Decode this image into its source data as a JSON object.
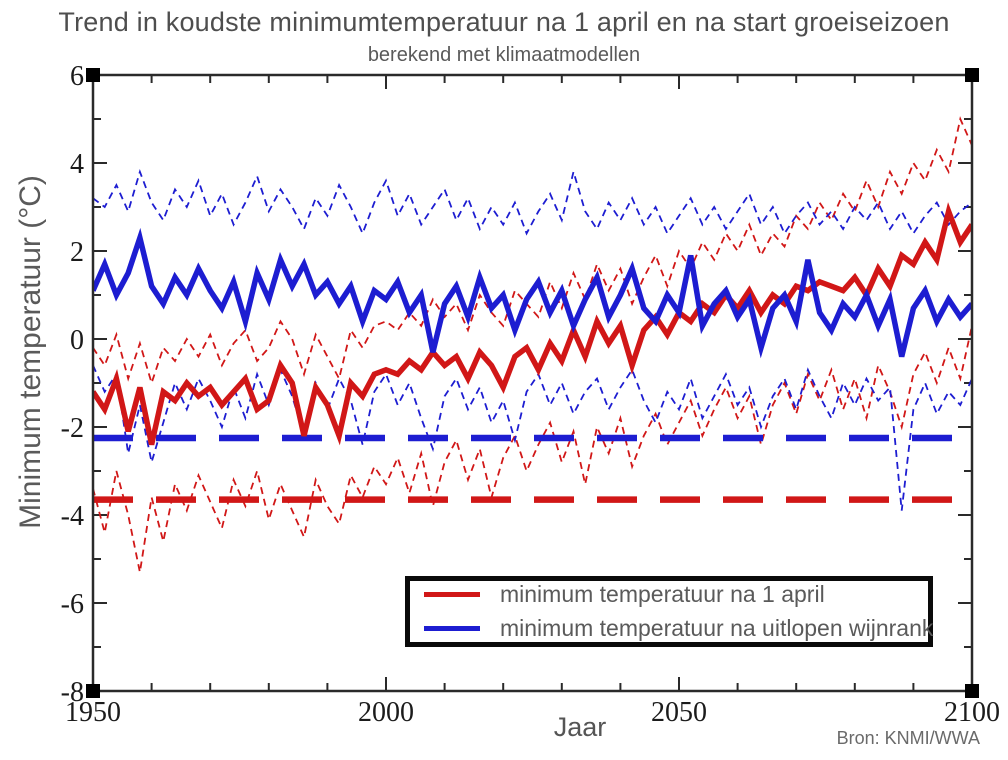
{
  "header": {
    "title": "Trend in koudste minimumtemperatuur na 1 april en na start groeiseizoen",
    "subtitle": "berekend met klimaatmodellen"
  },
  "source": "Bron: KNMI/WWA",
  "colors": {
    "red": "#d11717",
    "blue": "#1d1dd1",
    "axis": "#2a2a2a"
  },
  "axes": {
    "x": {
      "label": "Jaar",
      "min": 1950,
      "max": 2100
    },
    "y": {
      "label": "Minimum temperatuur (°C)",
      "min": -8,
      "max": 6
    }
  },
  "legend": {
    "items": [
      {
        "label": "minimum temperatuur na 1 april",
        "color": "red"
      },
      {
        "label": "minimum temperatuur na uitlopen wijnrank",
        "color": "blue"
      }
    ]
  },
  "chart_data": {
    "type": "line",
    "title": "Trend in koudste minimumtemperatuur na 1 april en na start groeiseizoen",
    "subtitle": "berekend met klimaatmodellen",
    "xlabel": "Jaar",
    "ylabel": "Minimum temperatuur (°C)",
    "xlim": [
      1950,
      2100
    ],
    "ylim": [
      -8,
      6
    ],
    "grid": false,
    "legend_position": "bottom-center-inside",
    "x_ticks": {
      "major": [
        1950,
        2000,
        2050,
        2100
      ],
      "minor_step": 10
    },
    "y_ticks": {
      "major": [
        6,
        4,
        2,
        0,
        -2,
        -4,
        -6,
        -8
      ],
      "minor_step": 1
    },
    "x": [
      1950,
      1952,
      1954,
      1956,
      1958,
      1960,
      1962,
      1964,
      1966,
      1968,
      1970,
      1972,
      1974,
      1976,
      1978,
      1980,
      1982,
      1984,
      1986,
      1988,
      1990,
      1992,
      1994,
      1996,
      1998,
      2000,
      2002,
      2004,
      2006,
      2008,
      2010,
      2012,
      2014,
      2016,
      2018,
      2020,
      2022,
      2024,
      2026,
      2028,
      2030,
      2032,
      2034,
      2036,
      2038,
      2040,
      2042,
      2044,
      2046,
      2048,
      2050,
      2052,
      2054,
      2056,
      2058,
      2060,
      2062,
      2064,
      2066,
      2068,
      2070,
      2072,
      2074,
      2076,
      2078,
      2080,
      2082,
      2084,
      2086,
      2088,
      2090,
      2092,
      2094,
      2096,
      2098,
      2100
    ],
    "series": [
      {
        "id": "red-upper-band",
        "color": "red",
        "line": "dashed-thin",
        "values": [
          -0.2,
          -0.6,
          0.1,
          -0.9,
          -0.1,
          -1.0,
          -0.2,
          -0.5,
          0.0,
          -0.4,
          0.1,
          -0.6,
          -0.1,
          0.2,
          -0.5,
          -0.2,
          0.4,
          0.0,
          -0.8,
          0.1,
          -0.4,
          -0.9,
          0.2,
          -0.2,
          0.3,
          0.4,
          0.2,
          0.6,
          0.3,
          0.9,
          0.5,
          0.8,
          0.2,
          1.0,
          0.6,
          0.3,
          1.1,
          0.8,
          0.5,
          1.3,
          0.7,
          1.5,
          0.9,
          1.7,
          1.1,
          1.6,
          0.8,
          1.4,
          1.9,
          1.2,
          2.0,
          1.6,
          2.2,
          1.8,
          2.4,
          2.0,
          2.6,
          1.9,
          2.4,
          2.1,
          2.8,
          2.5,
          3.1,
          2.7,
          3.3,
          2.9,
          3.6,
          3.0,
          3.8,
          3.3,
          4.0,
          3.6,
          4.3,
          3.8,
          5.0,
          4.4
        ]
      },
      {
        "id": "red-lower-band",
        "color": "red",
        "line": "dashed-thin",
        "values": [
          -3.4,
          -4.4,
          -3.0,
          -4.0,
          -5.3,
          -3.6,
          -4.6,
          -3.3,
          -3.9,
          -3.1,
          -3.7,
          -4.3,
          -3.2,
          -3.8,
          -3.0,
          -4.1,
          -3.3,
          -3.9,
          -4.5,
          -3.2,
          -3.8,
          -4.2,
          -3.1,
          -3.6,
          -2.9,
          -3.3,
          -2.7,
          -3.5,
          -2.6,
          -3.8,
          -2.8,
          -2.3,
          -3.2,
          -2.5,
          -3.6,
          -2.7,
          -2.2,
          -3.0,
          -2.4,
          -1.9,
          -2.8,
          -2.1,
          -3.3,
          -2.0,
          -2.6,
          -1.8,
          -2.9,
          -2.2,
          -1.7,
          -2.4,
          -1.9,
          -1.4,
          -2.2,
          -1.6,
          -1.1,
          -1.8,
          -1.3,
          -2.4,
          -1.5,
          -1.0,
          -1.7,
          -0.8,
          -1.4,
          -0.7,
          -1.6,
          -0.9,
          -1.8,
          -0.6,
          -1.2,
          -2.0,
          -0.8,
          -0.3,
          -1.0,
          -0.2,
          -0.9,
          0.3
        ]
      },
      {
        "id": "blue-upper-band",
        "color": "blue",
        "line": "dashed-thin",
        "values": [
          3.2,
          3.0,
          3.5,
          2.9,
          3.8,
          3.1,
          2.7,
          3.4,
          3.0,
          3.6,
          2.8,
          3.3,
          2.6,
          3.1,
          3.7,
          2.9,
          3.4,
          3.0,
          2.5,
          3.2,
          2.8,
          3.5,
          3.0,
          2.4,
          3.1,
          3.6,
          2.8,
          3.3,
          2.6,
          3.0,
          3.4,
          2.7,
          3.2,
          2.5,
          3.0,
          2.6,
          3.1,
          2.4,
          2.9,
          3.3,
          2.7,
          3.8,
          2.9,
          2.5,
          3.1,
          2.7,
          3.2,
          2.6,
          3.0,
          2.4,
          2.8,
          3.2,
          2.6,
          3.0,
          2.5,
          2.9,
          3.3,
          2.6,
          3.0,
          2.4,
          2.8,
          3.1,
          2.6,
          2.9,
          2.5,
          3.0,
          2.7,
          3.1,
          2.5,
          2.9,
          2.4,
          2.8,
          3.1,
          2.6,
          2.9,
          3.1
        ]
      },
      {
        "id": "blue-lower-band",
        "color": "blue",
        "line": "dashed-thin",
        "values": [
          -0.6,
          -1.2,
          -0.8,
          -2.6,
          -1.5,
          -2.8,
          -1.9,
          -1.0,
          -1.6,
          -0.9,
          -1.4,
          -2.0,
          -1.1,
          -1.8,
          -0.8,
          -1.5,
          -0.7,
          -1.3,
          -2.2,
          -1.0,
          -1.6,
          -0.9,
          -1.4,
          -2.4,
          -1.2,
          -0.8,
          -1.5,
          -1.0,
          -1.8,
          -2.5,
          -1.3,
          -0.9,
          -1.6,
          -1.1,
          -1.9,
          -1.4,
          -2.3,
          -1.2,
          -0.8,
          -1.5,
          -1.0,
          -1.7,
          -1.2,
          -0.9,
          -1.6,
          -1.1,
          -0.7,
          -1.4,
          -1.9,
          -1.2,
          -1.6,
          -0.9,
          -1.8,
          -1.3,
          -0.8,
          -1.5,
          -1.1,
          -2.0,
          -1.3,
          -0.9,
          -1.6,
          -0.7,
          -1.3,
          -1.8,
          -1.0,
          -1.5,
          -0.9,
          -1.4,
          -1.1,
          -3.9,
          -1.6,
          -1.0,
          -1.7,
          -1.2,
          -1.5,
          -0.9
        ]
      },
      {
        "id": "red-main",
        "label": "minimum temperatuur na 1 april",
        "color": "red",
        "line": "solid-thick",
        "values": [
          -1.2,
          -1.6,
          -0.9,
          -2.1,
          -1.1,
          -2.4,
          -1.2,
          -1.4,
          -1.0,
          -1.3,
          -1.1,
          -1.5,
          -1.2,
          -0.9,
          -1.6,
          -1.4,
          -0.6,
          -1.0,
          -2.2,
          -1.1,
          -1.5,
          -2.2,
          -1.0,
          -1.3,
          -0.8,
          -0.7,
          -0.8,
          -0.5,
          -0.7,
          -0.3,
          -0.6,
          -0.4,
          -0.9,
          -0.3,
          -0.6,
          -1.1,
          -0.4,
          -0.2,
          -0.7,
          -0.1,
          -0.5,
          0.2,
          -0.4,
          0.4,
          -0.1,
          0.3,
          -0.6,
          0.2,
          0.5,
          0.1,
          0.6,
          0.4,
          0.8,
          0.6,
          1.0,
          0.7,
          1.1,
          0.6,
          1.0,
          0.8,
          1.2,
          1.1,
          1.3,
          1.2,
          1.1,
          1.4,
          1.0,
          1.6,
          1.2,
          1.9,
          1.7,
          2.2,
          1.8,
          2.9,
          2.2,
          2.6
        ]
      },
      {
        "id": "blue-main",
        "label": "minimum temperatuur na uitlopen wijnrank",
        "color": "blue",
        "line": "solid-thick",
        "values": [
          1.1,
          1.7,
          1.0,
          1.5,
          2.3,
          1.2,
          0.8,
          1.4,
          1.0,
          1.6,
          1.1,
          0.7,
          1.3,
          0.4,
          1.5,
          0.9,
          1.8,
          1.2,
          1.7,
          1.0,
          1.3,
          0.8,
          1.2,
          0.4,
          1.1,
          0.9,
          1.3,
          0.6,
          1.0,
          -0.3,
          0.8,
          1.2,
          0.5,
          1.4,
          0.7,
          1.0,
          0.2,
          0.9,
          1.3,
          0.6,
          1.1,
          0.3,
          0.9,
          1.4,
          0.5,
          1.0,
          1.6,
          0.7,
          0.4,
          1.0,
          0.6,
          1.9,
          0.3,
          0.8,
          1.1,
          0.5,
          0.9,
          -0.2,
          0.7,
          1.0,
          0.4,
          1.8,
          0.6,
          0.2,
          0.8,
          0.5,
          1.0,
          0.3,
          0.9,
          -0.4,
          0.7,
          1.1,
          0.4,
          0.9,
          0.5,
          0.8
        ]
      }
    ],
    "reference_lines": [
      {
        "id": "blue-reference",
        "color": "blue",
        "line": "dashed-thick",
        "y": -2.25
      },
      {
        "id": "red-reference",
        "color": "red",
        "line": "dashed-thick",
        "y": -3.65
      }
    ],
    "source": "Bron: KNMI/WWA"
  }
}
